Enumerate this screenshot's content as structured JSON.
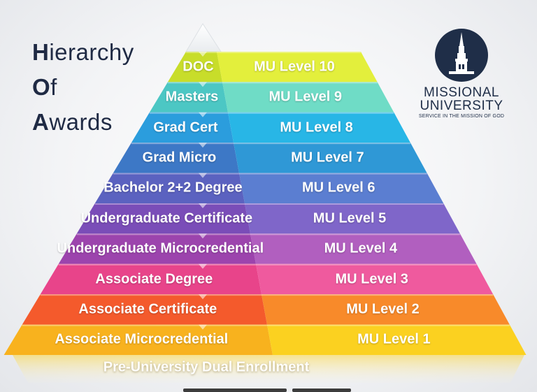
{
  "title": {
    "line1_initial": "H",
    "line1_rest": "ierarchy",
    "line2_initial": "O",
    "line2_rest": "f",
    "line3_initial": "A",
    "line3_rest": "wards"
  },
  "logo": {
    "name_line1": "MISSIONAL",
    "name_line2": "UNIVERSITY",
    "tagline": "SERVICE IN THE MISSION OF GOD"
  },
  "tiers": [
    {
      "award": "DOC",
      "level": "MU Level 10",
      "color_left": "#c8dd2a",
      "color_right": "#e3ef3c"
    },
    {
      "award": "Masters",
      "level": "MU Level 9",
      "color_left": "#4cc7c4",
      "color_right": "#6fdcc6"
    },
    {
      "award": "Grad Cert",
      "level": "MU Level 8",
      "color_left": "#2b9ddd",
      "color_right": "#28b6e6"
    },
    {
      "award": "Grad Micro",
      "level": "MU Level 7",
      "color_left": "#3d78c6",
      "color_right": "#2f98d6"
    },
    {
      "award": "Bachelor 2+2 Degree",
      "level": "MU Level 6",
      "color_left": "#5b62c0",
      "color_right": "#5b7ed1"
    },
    {
      "award": "Undergraduate Certificate",
      "level": "MU Level 5",
      "color_left": "#7a4db8",
      "color_right": "#7f66c9"
    },
    {
      "award": "Undergraduate Microcredential",
      "level": "MU Level 4",
      "color_left": "#9c44ad",
      "color_right": "#b15fbf"
    },
    {
      "award": "Associate Degree",
      "level": "MU Level 3",
      "color_left": "#e8448a",
      "color_right": "#ef5a9e"
    },
    {
      "award": "Associate Certificate",
      "level": "MU Level 2",
      "color_left": "#f45a2c",
      "color_right": "#f88a2a"
    },
    {
      "award": "Associate Microcredential",
      "level": "MU Level 1",
      "color_left": "#f8b21e",
      "color_right": "#fbd120"
    }
  ],
  "base": {
    "award": "Pre-University Dual Enrollment"
  }
}
